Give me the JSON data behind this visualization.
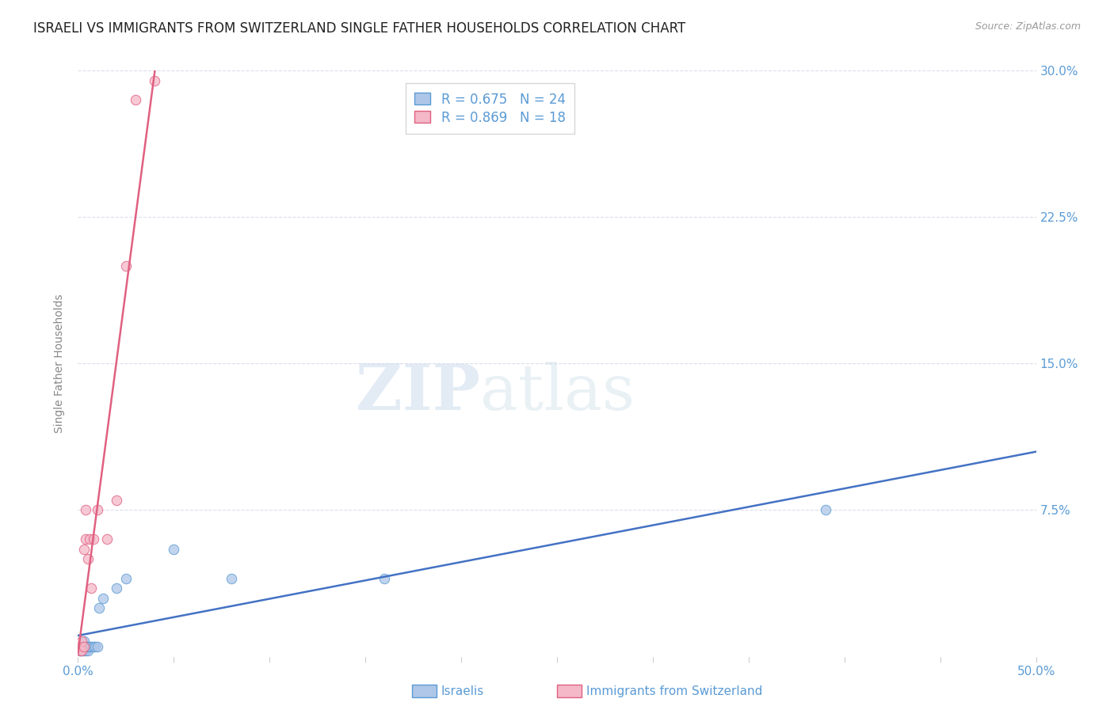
{
  "title": "ISRAELI VS IMMIGRANTS FROM SWITZERLAND SINGLE FATHER HOUSEHOLDS CORRELATION CHART",
  "source": "Source: ZipAtlas.com",
  "ylabel": "Single Father Households",
  "watermark_zip": "ZIP",
  "watermark_atlas": "atlas",
  "xmin": 0.0,
  "xmax": 0.5,
  "ymin": 0.0,
  "ymax": 0.3,
  "yticks": [
    0.0,
    0.075,
    0.15,
    0.225,
    0.3
  ],
  "ytick_labels": [
    "",
    "7.5%",
    "15.0%",
    "22.5%",
    "30.0%"
  ],
  "xticks": [
    0.0,
    0.05,
    0.1,
    0.15,
    0.2,
    0.25,
    0.3,
    0.35,
    0.4,
    0.45,
    0.5
  ],
  "xtick_labels_shown": {
    "0.0": "0.0%",
    "0.5": "50.0%"
  },
  "series1_name": "Israelis",
  "series1_color": "#aec6e8",
  "series1_edge_color": "#5b9bd5",
  "series1_line_color": "#4472c4",
  "series1_R": 0.675,
  "series1_N": 24,
  "series1_x": [
    0.001,
    0.001,
    0.002,
    0.002,
    0.003,
    0.003,
    0.003,
    0.004,
    0.004,
    0.005,
    0.005,
    0.006,
    0.007,
    0.008,
    0.009,
    0.01,
    0.011,
    0.013,
    0.02,
    0.025,
    0.05,
    0.08,
    0.16,
    0.39
  ],
  "series1_y": [
    0.003,
    0.005,
    0.003,
    0.005,
    0.003,
    0.005,
    0.008,
    0.003,
    0.005,
    0.003,
    0.005,
    0.005,
    0.005,
    0.005,
    0.005,
    0.005,
    0.025,
    0.03,
    0.035,
    0.04,
    0.055,
    0.04,
    0.04,
    0.075
  ],
  "series2_name": "Immigrants from Switzerland",
  "series2_color": "#f4b8c8",
  "series2_edge_color": "#e06080",
  "series2_line_color": "#e06080",
  "series2_R": 0.869,
  "series2_N": 18,
  "series2_x": [
    0.001,
    0.001,
    0.002,
    0.002,
    0.003,
    0.003,
    0.004,
    0.004,
    0.005,
    0.006,
    0.007,
    0.008,
    0.01,
    0.015,
    0.02,
    0.025,
    0.03,
    0.04
  ],
  "series2_y": [
    0.003,
    0.005,
    0.003,
    0.008,
    0.005,
    0.055,
    0.06,
    0.075,
    0.05,
    0.06,
    0.035,
    0.06,
    0.075,
    0.06,
    0.08,
    0.2,
    0.285,
    0.295
  ],
  "bg_color": "#ffffff",
  "grid_color": "#ddddee",
  "title_color": "#222222",
  "axis_label_color": "#888888",
  "tick_label_color": "#5b9bd5",
  "legend_text_color": "#5b9bd5",
  "title_fontsize": 12,
  "axis_label_fontsize": 10,
  "tick_fontsize": 11,
  "legend_fontsize": 12,
  "marker_size": 80,
  "line_width": 1.8
}
